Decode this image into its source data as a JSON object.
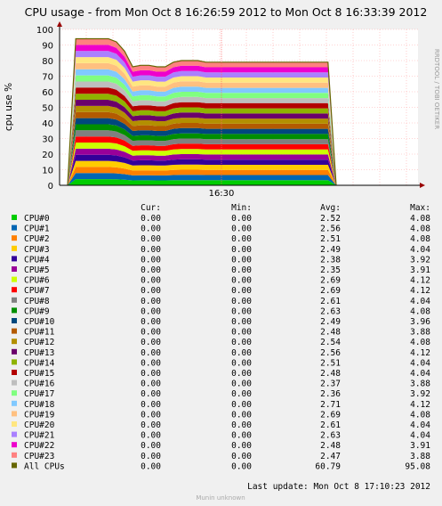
{
  "chart_data": {
    "type": "area",
    "title": "CPU usage - from Mon Oct  8 16:26:59 2012 to Mon Oct  8 16:33:39 2012",
    "ylabel": "cpu use %",
    "xlabel": "",
    "side_label": "RRDTOOL / TOBI OETIKER",
    "ylim": [
      0,
      100
    ],
    "yticks": [
      "0",
      "10",
      "20",
      "30",
      "40",
      "50",
      "60",
      "70",
      "80",
      "90",
      "100"
    ],
    "xticks": [
      "16:30"
    ],
    "x": [
      0,
      3,
      6,
      9,
      12,
      15,
      18,
      21,
      24,
      27,
      30,
      33,
      36,
      39,
      42,
      45,
      48,
      51,
      54,
      57,
      60,
      63,
      66,
      69,
      72,
      75,
      78,
      81,
      84,
      87,
      90,
      93,
      96,
      99
    ],
    "total": [
      0,
      94,
      94,
      94,
      94,
      94,
      92,
      86,
      76,
      77,
      77,
      76,
      76,
      79,
      80,
      80,
      80,
      79,
      79,
      79,
      79,
      79,
      79,
      79,
      79,
      79,
      79,
      79,
      79,
      79,
      79,
      79,
      79,
      0
    ],
    "series_colors": [
      "#00cc00",
      "#0066b3",
      "#ff8000",
      "#ffcc00",
      "#330099",
      "#990099",
      "#ccff00",
      "#ff0000",
      "#808080",
      "#008f00",
      "#00487d",
      "#b35a00",
      "#b38f00",
      "#6b006b",
      "#8fb300",
      "#b30000",
      "#bebebe",
      "#80ff80",
      "#80c9ff",
      "#ffc080",
      "#ffe680",
      "#aa80ff",
      "#ee00cc",
      "#ff8080"
    ],
    "all_color": "#666600",
    "legend": {
      "headers": [
        "Cur:",
        "Min:",
        "Avg:",
        "Max:"
      ],
      "rows": [
        {
          "name": "CPU#0",
          "color": "#00cc00",
          "cur": "0.00",
          "min": "0.00",
          "avg": "2.52",
          "max": "4.08"
        },
        {
          "name": "CPU#1",
          "color": "#0066b3",
          "cur": "0.00",
          "min": "0.00",
          "avg": "2.56",
          "max": "4.08"
        },
        {
          "name": "CPU#2",
          "color": "#ff8000",
          "cur": "0.00",
          "min": "0.00",
          "avg": "2.51",
          "max": "4.08"
        },
        {
          "name": "CPU#3",
          "color": "#ffcc00",
          "cur": "0.00",
          "min": "0.00",
          "avg": "2.49",
          "max": "4.04"
        },
        {
          "name": "CPU#4",
          "color": "#330099",
          "cur": "0.00",
          "min": "0.00",
          "avg": "2.38",
          "max": "3.92"
        },
        {
          "name": "CPU#5",
          "color": "#990099",
          "cur": "0.00",
          "min": "0.00",
          "avg": "2.35",
          "max": "3.91"
        },
        {
          "name": "CPU#6",
          "color": "#ccff00",
          "cur": "0.00",
          "min": "0.00",
          "avg": "2.69",
          "max": "4.12"
        },
        {
          "name": "CPU#7",
          "color": "#ff0000",
          "cur": "0.00",
          "min": "0.00",
          "avg": "2.69",
          "max": "4.12"
        },
        {
          "name": "CPU#8",
          "color": "#808080",
          "cur": "0.00",
          "min": "0.00",
          "avg": "2.61",
          "max": "4.04"
        },
        {
          "name": "CPU#9",
          "color": "#008f00",
          "cur": "0.00",
          "min": "0.00",
          "avg": "2.63",
          "max": "4.08"
        },
        {
          "name": "CPU#10",
          "color": "#00487d",
          "cur": "0.00",
          "min": "0.00",
          "avg": "2.49",
          "max": "3.96"
        },
        {
          "name": "CPU#11",
          "color": "#b35a00",
          "cur": "0.00",
          "min": "0.00",
          "avg": "2.48",
          "max": "3.88"
        },
        {
          "name": "CPU#12",
          "color": "#b38f00",
          "cur": "0.00",
          "min": "0.00",
          "avg": "2.54",
          "max": "4.08"
        },
        {
          "name": "CPU#13",
          "color": "#6b006b",
          "cur": "0.00",
          "min": "0.00",
          "avg": "2.56",
          "max": "4.12"
        },
        {
          "name": "CPU#14",
          "color": "#8fb300",
          "cur": "0.00",
          "min": "0.00",
          "avg": "2.51",
          "max": "4.04"
        },
        {
          "name": "CPU#15",
          "color": "#b30000",
          "cur": "0.00",
          "min": "0.00",
          "avg": "2.48",
          "max": "4.04"
        },
        {
          "name": "CPU#16",
          "color": "#bebebe",
          "cur": "0.00",
          "min": "0.00",
          "avg": "2.37",
          "max": "3.88"
        },
        {
          "name": "CPU#17",
          "color": "#80ff80",
          "cur": "0.00",
          "min": "0.00",
          "avg": "2.36",
          "max": "3.92"
        },
        {
          "name": "CPU#18",
          "color": "#80c9ff",
          "cur": "0.00",
          "min": "0.00",
          "avg": "2.71",
          "max": "4.12"
        },
        {
          "name": "CPU#19",
          "color": "#ffc080",
          "cur": "0.00",
          "min": "0.00",
          "avg": "2.69",
          "max": "4.08"
        },
        {
          "name": "CPU#20",
          "color": "#ffe680",
          "cur": "0.00",
          "min": "0.00",
          "avg": "2.61",
          "max": "4.04"
        },
        {
          "name": "CPU#21",
          "color": "#aa80ff",
          "cur": "0.00",
          "min": "0.00",
          "avg": "2.63",
          "max": "4.04"
        },
        {
          "name": "CPU#22",
          "color": "#ee00cc",
          "cur": "0.00",
          "min": "0.00",
          "avg": "2.48",
          "max": "3.91"
        },
        {
          "name": "CPU#23",
          "color": "#ff8080",
          "cur": "0.00",
          "min": "0.00",
          "avg": "2.47",
          "max": "3.88"
        },
        {
          "name": "All CPUs",
          "color": "#666600",
          "cur": "0.00",
          "min": "0.00",
          "avg": "60.79",
          "max": "95.08"
        }
      ]
    }
  },
  "footer": {
    "last_update": "Last update:  Mon Oct  8 17:10:23 2012",
    "munin": "Munin unknown"
  }
}
